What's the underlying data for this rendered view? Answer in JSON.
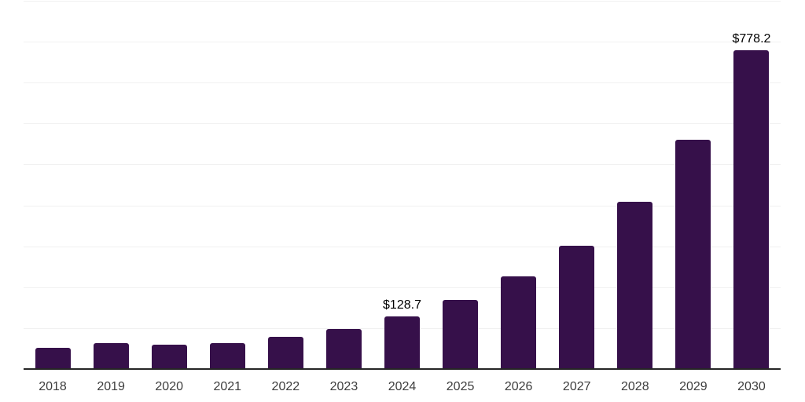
{
  "chart_data": {
    "type": "bar",
    "title": "",
    "xlabel": "",
    "ylabel": "",
    "categories": [
      "2018",
      "2019",
      "2020",
      "2021",
      "2022",
      "2023",
      "2024",
      "2025",
      "2026",
      "2027",
      "2028",
      "2029",
      "2030"
    ],
    "values": [
      52,
      64,
      59,
      63,
      78,
      97,
      128.7,
      169,
      226,
      302,
      408,
      560,
      778.2
    ],
    "data_labels": [
      {
        "category": "2024",
        "text": "$128.7"
      },
      {
        "category": "2030",
        "text": "$778.2"
      }
    ],
    "ylim": [
      0,
      900
    ],
    "gridline_step": 100,
    "grid": "horizontal",
    "legend": "none",
    "colors": {
      "bar": "#36104a",
      "gridline": "#f1f1f1",
      "axis_line": "#262626",
      "tick_label": "#3d3d3d",
      "data_label": "#000000",
      "background": "#ffffff"
    }
  }
}
